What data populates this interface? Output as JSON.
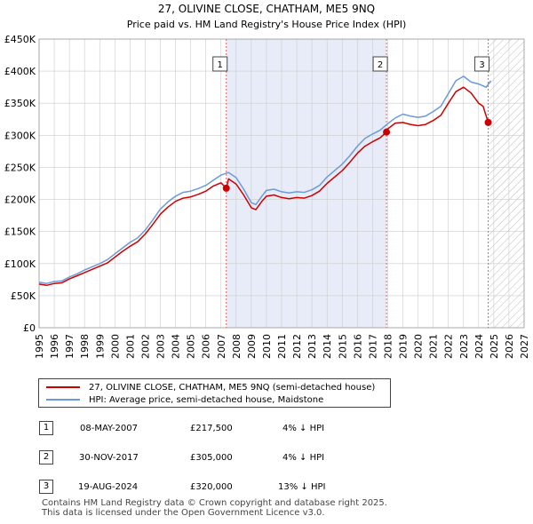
{
  "chart_data": {
    "type": "line",
    "title": "27, OLIVINE CLOSE, CHATHAM, ME5 9NQ",
    "subtitle": "Price paid vs. HM Land Registry's House Price Index (HPI)",
    "y_ticks": [
      0,
      50000,
      100000,
      150000,
      200000,
      250000,
      300000,
      350000,
      400000,
      450000
    ],
    "y_tick_labels": [
      "£0",
      "£50K",
      "£100K",
      "£150K",
      "£200K",
      "£250K",
      "£300K",
      "£350K",
      "£400K",
      "£450K"
    ],
    "ylim": [
      0,
      450000
    ],
    "xlim": [
      1995,
      2027
    ],
    "x_ticks": [
      1995,
      1996,
      1997,
      1998,
      1999,
      2000,
      2001,
      2002,
      2003,
      2004,
      2005,
      2006,
      2007,
      2008,
      2009,
      2010,
      2011,
      2012,
      2013,
      2014,
      2015,
      2016,
      2017,
      2018,
      2019,
      2020,
      2021,
      2022,
      2023,
      2024,
      2025,
      2026,
      2027
    ],
    "x_tick_labels": [
      "1995",
      "1996",
      "1997",
      "1998",
      "1999",
      "2000",
      "2001",
      "2002",
      "2003",
      "2004",
      "2005",
      "2006",
      "2007",
      "2008",
      "2009",
      "2010",
      "2011",
      "2012",
      "2013",
      "2014",
      "2015",
      "2016",
      "2017",
      "2018",
      "2019",
      "2020",
      "2021",
      "2022",
      "2023",
      "2024",
      "2025",
      "2026",
      "2027"
    ],
    "shaded_region": [
      2007.35,
      2017.92
    ],
    "future_hatch_from": 2024.7,
    "series": [
      {
        "name": "HPI: Average price, semi-detached house, Maidstone",
        "color": "#6a9bd8",
        "x": [
          1995.0,
          1995.5,
          1996.0,
          1996.5,
          1997.0,
          1997.5,
          1998.0,
          1998.5,
          1999.0,
          1999.5,
          2000.0,
          2000.5,
          2001.0,
          2001.5,
          2002.0,
          2002.5,
          2003.0,
          2003.5,
          2004.0,
          2004.5,
          2005.0,
          2005.5,
          2006.0,
          2006.5,
          2007.0,
          2007.5,
          2008.0,
          2008.5,
          2009.0,
          2009.3,
          2009.7,
          2010.0,
          2010.5,
          2011.0,
          2011.5,
          2012.0,
          2012.5,
          2013.0,
          2013.5,
          2014.0,
          2014.5,
          2015.0,
          2015.5,
          2016.0,
          2016.5,
          2017.0,
          2017.5,
          2018.0,
          2018.5,
          2019.0,
          2019.5,
          2020.0,
          2020.5,
          2021.0,
          2021.5,
          2022.0,
          2022.5,
          2023.0,
          2023.5,
          2024.0,
          2024.5,
          2024.8
        ],
        "values": [
          71000,
          69000,
          72000,
          73000,
          79000,
          84000,
          90000,
          95000,
          100000,
          106000,
          115000,
          124000,
          133000,
          140000,
          152000,
          168000,
          185000,
          196000,
          205000,
          211000,
          213000,
          217000,
          222000,
          230000,
          238000,
          242000,
          234000,
          216000,
          195000,
          192000,
          205000,
          214000,
          216000,
          212000,
          210000,
          212000,
          211000,
          215000,
          222000,
          235000,
          245000,
          255000,
          268000,
          283000,
          295000,
          302000,
          308000,
          318000,
          327000,
          333000,
          330000,
          328000,
          330000,
          337000,
          345000,
          365000,
          385000,
          392000,
          383000,
          380000,
          375000,
          385000
        ]
      },
      {
        "name": "27, OLIVINE CLOSE, CHATHAM, ME5 9NQ (semi-detached house)",
        "color": "#cc0000",
        "x": [
          1995.0,
          1995.5,
          1996.0,
          1996.5,
          1997.0,
          1997.5,
          1998.0,
          1998.5,
          1999.0,
          1999.5,
          2000.0,
          2000.5,
          2001.0,
          2001.5,
          2002.0,
          2002.5,
          2003.0,
          2003.5,
          2004.0,
          2004.5,
          2005.0,
          2005.5,
          2006.0,
          2006.5,
          2007.0,
          2007.35,
          2007.5,
          2008.0,
          2008.5,
          2009.0,
          2009.3,
          2009.7,
          2010.0,
          2010.5,
          2011.0,
          2011.5,
          2012.0,
          2012.5,
          2013.0,
          2013.5,
          2014.0,
          2014.5,
          2015.0,
          2015.5,
          2016.0,
          2016.5,
          2017.0,
          2017.5,
          2017.92,
          2018.0,
          2018.5,
          2019.0,
          2019.5,
          2020.0,
          2020.5,
          2021.0,
          2021.5,
          2022.0,
          2022.5,
          2023.0,
          2023.5,
          2024.0,
          2024.3,
          2024.63,
          2024.8
        ],
        "values": [
          68000,
          66000,
          69000,
          70000,
          76000,
          81000,
          86000,
          91000,
          96000,
          101000,
          110000,
          119000,
          127000,
          134000,
          146000,
          161000,
          177000,
          188000,
          197000,
          202000,
          204000,
          208000,
          213000,
          221000,
          226000,
          217500,
          232000,
          224000,
          207000,
          187000,
          184000,
          197000,
          205000,
          207000,
          203000,
          201000,
          203000,
          202000,
          206000,
          213000,
          225000,
          235000,
          245000,
          258000,
          272000,
          283000,
          290000,
          296000,
          305000,
          310000,
          319000,
          320000,
          317000,
          315000,
          317000,
          323000,
          331000,
          350000,
          368000,
          375000,
          366000,
          350000,
          345000,
          320000,
          318000
        ]
      }
    ],
    "sale_markers": [
      {
        "label": "1",
        "x": 2007.35,
        "value": 217500
      },
      {
        "label": "2",
        "x": 2017.92,
        "value": 305000
      },
      {
        "label": "3",
        "x": 2024.63,
        "value": 320000
      }
    ]
  },
  "legend": {
    "property_label": "27, OLIVINE CLOSE, CHATHAM, ME5 9NQ (semi-detached house)",
    "hpi_label": "HPI: Average price, semi-detached house, Maidstone"
  },
  "sales": [
    {
      "num": "1",
      "date": "08-MAY-2007",
      "price": "£217,500",
      "hpi": "4% ↓ HPI"
    },
    {
      "num": "2",
      "date": "30-NOV-2017",
      "price": "£305,000",
      "hpi": "4% ↓ HPI"
    },
    {
      "num": "3",
      "date": "19-AUG-2024",
      "price": "£320,000",
      "hpi": "13% ↓ HPI"
    }
  ],
  "footer": {
    "line1": "Contains HM Land Registry data © Crown copyright and database right 2025.",
    "line2": "This data is licensed under the Open Government Licence v3.0."
  },
  "colors": {
    "property": "#cc0000",
    "hpi": "#6a9bd8",
    "shade": "#e8ecf8",
    "grid": "#cccccc"
  }
}
